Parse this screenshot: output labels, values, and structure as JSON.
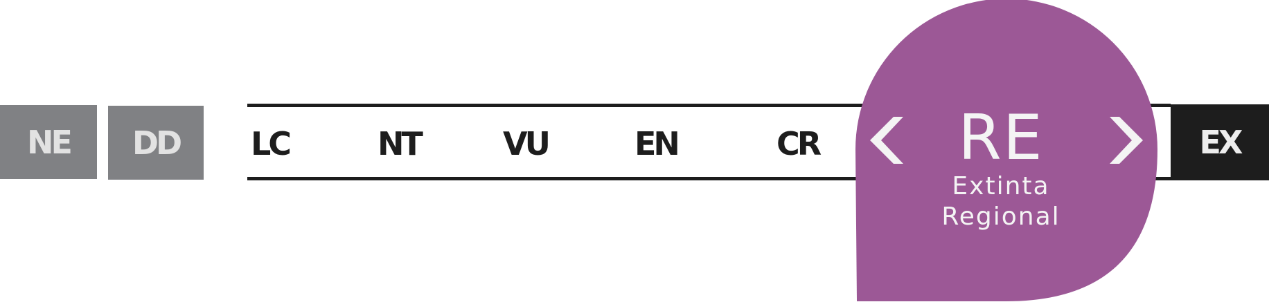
{
  "categories": {
    "ne": "NE",
    "dd": "DD",
    "lc": "LC",
    "nt": "NT",
    "vu": "VU",
    "en": "EN",
    "cr": "CR",
    "ex": "EX"
  },
  "selected": {
    "code": "RE",
    "name_line1": "Extinta",
    "name_line2": "Regional"
  },
  "colors": {
    "selected_bubble": "#9c5896",
    "data_deficient_box": "#808184",
    "extinct_box": "#1d1d1d",
    "scale_line": "#1d1d1d"
  },
  "icons": {
    "prev": "chevron-left-icon",
    "next": "chevron-right-icon"
  }
}
